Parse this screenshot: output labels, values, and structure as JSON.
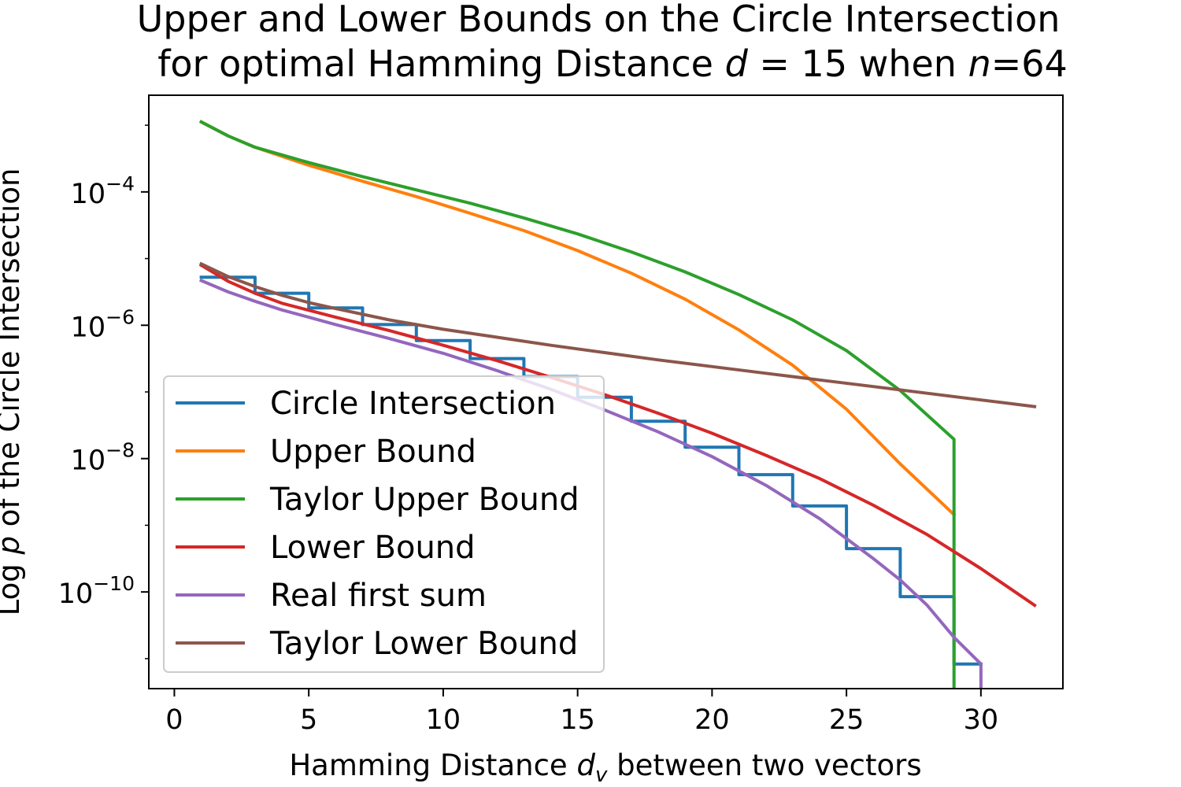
{
  "chart_data": {
    "type": "line",
    "title_line1": "Upper and Lower Bounds on the Circle Intersection",
    "title_line2_prefix": "for optimal Hamming Distance ",
    "title_line2_d": "d",
    "title_line2_mid": " = 15 when ",
    "title_line2_n": "n",
    "title_line2_suffix": "=64",
    "xlabel_prefix": "Hamming Distance ",
    "xlabel_var": "d",
    "xlabel_sub": "v",
    "xlabel_suffix": " between two vectors",
    "ylabel_prefix": "Log ",
    "ylabel_var": "p",
    "ylabel_suffix": " of the Circle Intersection",
    "xlim": [
      -0.95,
      33.05
    ],
    "ylim_log10": [
      -11.45,
      -2.55
    ],
    "yscale": "log",
    "x_ticks": [
      0,
      5,
      10,
      15,
      20,
      25,
      30
    ],
    "y_ticks": [
      {
        "exp": -4,
        "base": "10",
        "sup": "−4"
      },
      {
        "exp": -6,
        "base": "10",
        "sup": "−6"
      },
      {
        "exp": -8,
        "base": "10",
        "sup": "−8"
      },
      {
        "exp": -10,
        "base": "10",
        "sup": "−10"
      }
    ],
    "legend_position": "lower-left",
    "grid": false,
    "series": [
      {
        "name": "Circle Intersection",
        "color": "#1f77b4",
        "step": true,
        "x": [
          1,
          2,
          3,
          4,
          5,
          6,
          7,
          8,
          9,
          10,
          11,
          12,
          13,
          14,
          15,
          16,
          17,
          18,
          19,
          20,
          21,
          22,
          23,
          24,
          25,
          26,
          27,
          28,
          29,
          30
        ],
        "log10_y": [
          -5.28,
          -5.28,
          -5.52,
          -5.52,
          -5.74,
          -5.74,
          -5.99,
          -5.99,
          -6.23,
          -6.23,
          -6.5,
          -6.5,
          -6.77,
          -6.77,
          -7.08,
          -7.08,
          -7.44,
          -7.44,
          -7.83,
          -7.83,
          -8.24,
          -8.24,
          -8.71,
          -8.71,
          -9.35,
          -9.35,
          -10.07,
          -10.07,
          -11.08,
          -11.08
        ]
      },
      {
        "name": "Upper Bound",
        "color": "#ff7f0e",
        "x": [
          1,
          2,
          3,
          5,
          7,
          9,
          11,
          13,
          15,
          17,
          19,
          21,
          23,
          25,
          27,
          29
        ],
        "log10_y": [
          -2.95,
          -3.16,
          -3.33,
          -3.6,
          -3.84,
          -4.07,
          -4.32,
          -4.58,
          -4.88,
          -5.22,
          -5.61,
          -6.07,
          -6.6,
          -7.26,
          -8.08,
          -8.84
        ]
      },
      {
        "name": "Taylor Upper Bound",
        "color": "#2ca02c",
        "x": [
          1,
          2,
          3,
          5,
          7,
          9,
          11,
          13,
          15,
          17,
          19,
          21,
          23,
          25,
          27,
          29,
          29
        ],
        "log10_y": [
          -2.95,
          -3.16,
          -3.33,
          -3.56,
          -3.77,
          -3.97,
          -4.17,
          -4.39,
          -4.63,
          -4.9,
          -5.2,
          -5.54,
          -5.92,
          -6.38,
          -6.98,
          -7.71,
          -11.5
        ]
      },
      {
        "name": "Lower Bound",
        "color": "#d62728",
        "x": [
          1,
          2,
          3,
          4,
          6,
          8,
          10,
          12,
          14,
          16,
          18,
          20,
          22,
          24,
          26,
          28,
          30,
          32
        ],
        "log10_y": [
          -5.1,
          -5.34,
          -5.52,
          -5.67,
          -5.88,
          -6.08,
          -6.3,
          -6.53,
          -6.78,
          -7.04,
          -7.32,
          -7.62,
          -7.95,
          -8.3,
          -8.7,
          -9.14,
          -9.65,
          -10.2
        ]
      },
      {
        "name": "Real first sum",
        "color": "#9467bd",
        "x": [
          1,
          2,
          3,
          4,
          5,
          6,
          8,
          10,
          12,
          14,
          16,
          18,
          20,
          22,
          24,
          25,
          26,
          27,
          28,
          29,
          30,
          30
        ],
        "log10_y": [
          -5.33,
          -5.5,
          -5.64,
          -5.77,
          -5.88,
          -5.99,
          -6.2,
          -6.42,
          -6.68,
          -6.96,
          -7.27,
          -7.6,
          -7.97,
          -8.4,
          -8.9,
          -9.2,
          -9.5,
          -9.82,
          -10.2,
          -10.68,
          -11.08,
          -11.5
        ]
      },
      {
        "name": "Taylor Lower Bound",
        "color": "#8c564b",
        "x": [
          1,
          2,
          3,
          4,
          5,
          6,
          8,
          10,
          12,
          14,
          16,
          18,
          20,
          22,
          24,
          26,
          28,
          30,
          32
        ],
        "log10_y": [
          -5.08,
          -5.27,
          -5.42,
          -5.55,
          -5.66,
          -5.75,
          -5.92,
          -6.06,
          -6.18,
          -6.3,
          -6.41,
          -6.52,
          -6.62,
          -6.72,
          -6.82,
          -6.92,
          -7.02,
          -7.12,
          -7.22
        ]
      }
    ]
  }
}
